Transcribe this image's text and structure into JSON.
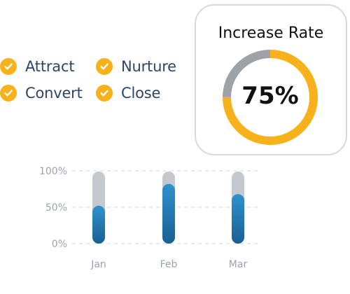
{
  "checklist": {
    "items": [
      {
        "label": "Attract",
        "icon": "check-circle-icon"
      },
      {
        "label": "Nurture",
        "icon": "check-circle-icon"
      },
      {
        "label": "Convert",
        "icon": "check-circle-icon"
      },
      {
        "label": "Close",
        "icon": "check-circle-icon"
      }
    ]
  },
  "colors": {
    "accent": "#f7b21b",
    "text": "#2e4563",
    "track": "#c3c9ce",
    "bar": "#1f74ad"
  },
  "chart_data": [
    {
      "type": "pie",
      "title": "Increase Rate",
      "value_label": "75%",
      "values": [
        75,
        25
      ],
      "colors": [
        "#f7b21b",
        "#9da2a7"
      ]
    },
    {
      "type": "bar",
      "categories": [
        "Jan",
        "Feb",
        "Mar"
      ],
      "values": [
        52,
        82,
        68
      ],
      "ylim": [
        0,
        100
      ],
      "yticks": [
        "0%",
        "50%",
        "100%"
      ],
      "grid": true
    }
  ]
}
